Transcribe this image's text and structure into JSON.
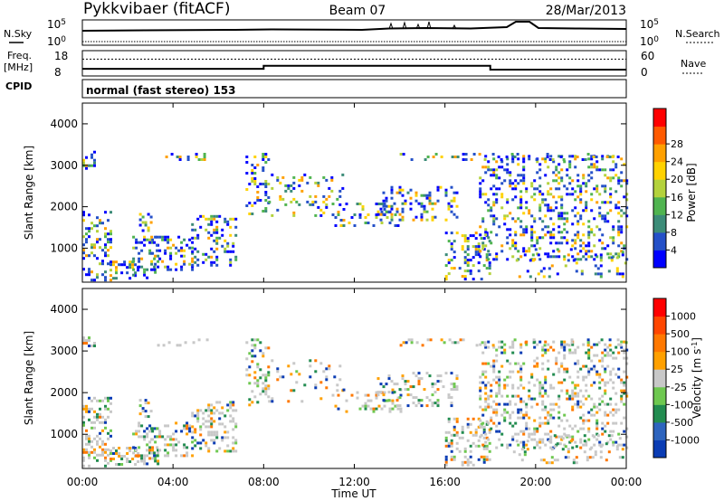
{
  "header": {
    "station": "Pykkvibaer (fitACF)",
    "beam": "Beam 07",
    "date": "28/Mar/2013"
  },
  "chart_data": [
    {
      "type": "line",
      "panel": "noise",
      "left_label": "N.Sky",
      "right_label": "N.Search",
      "y_ticks_left": [
        {
          "base": "10",
          "exp": "5"
        },
        {
          "base": "10",
          "exp": "0"
        }
      ],
      "y_ticks_right": [
        {
          "base": "10",
          "exp": "5"
        },
        {
          "base": "10",
          "exp": "0"
        }
      ],
      "description_series": "noise level traces vs time"
    },
    {
      "type": "line",
      "panel": "frequency",
      "left_label_1": "Freq.",
      "left_label_2": "[MHz]",
      "right_label": "Nave",
      "y_ticks_left": [
        "18",
        "8"
      ],
      "y_ticks_right": [
        "60",
        "0"
      ],
      "freq_steps": [
        {
          "x0": 0.0,
          "x1": 8.0,
          "value": 10.8
        },
        {
          "x0": 8.0,
          "x1": 18.0,
          "value": 12.0
        },
        {
          "x0": 18.0,
          "x1": 24.0,
          "value": 10.5
        }
      ],
      "nave_level": 40
    },
    {
      "type": "text",
      "panel": "cpid",
      "label": "CPID",
      "value": "normal (fast stereo) 153"
    },
    {
      "type": "heatmap",
      "panel": "power",
      "ylabel": "Slant Range [km]",
      "y_ticks": [
        "1000",
        "2000",
        "3000",
        "4000"
      ],
      "ylim": [
        180,
        4500
      ],
      "colorbar_label": "Power [dB]",
      "colorbar_ticks": [
        "4",
        "8",
        "12",
        "16",
        "20",
        "24",
        "28"
      ],
      "colors": [
        "#0000ff",
        "#2450c8",
        "#3c8c78",
        "#50b450",
        "#b4d23c",
        "#ffd200",
        "#ffa000",
        "#ff5a00",
        "#ff0000"
      ]
    },
    {
      "type": "heatmap",
      "panel": "velocity",
      "ylabel": "Slant Range [km]",
      "y_ticks": [
        "1000",
        "2000",
        "3000",
        "4000"
      ],
      "ylim": [
        180,
        4500
      ],
      "colorbar_label": "Velocity [m s",
      "colorbar_label_sup": "-1",
      "colorbar_ticks": [
        "1000",
        "500",
        "100",
        "25",
        "-25",
        "-100",
        "-500",
        "-1000"
      ],
      "colors": [
        "#0a3cb4",
        "#2d64be",
        "#228c50",
        "#6ec850",
        "#c8c8c8",
        "#ffa000",
        "#ff7800",
        "#ff4600",
        "#ff0000"
      ]
    }
  ],
  "x_axis": {
    "xlabel": "Time UT",
    "xlim": [
      0,
      24
    ],
    "ticks": [
      "00:00",
      "04:00",
      "08:00",
      "12:00",
      "16:00",
      "20:00",
      "00:00"
    ]
  }
}
